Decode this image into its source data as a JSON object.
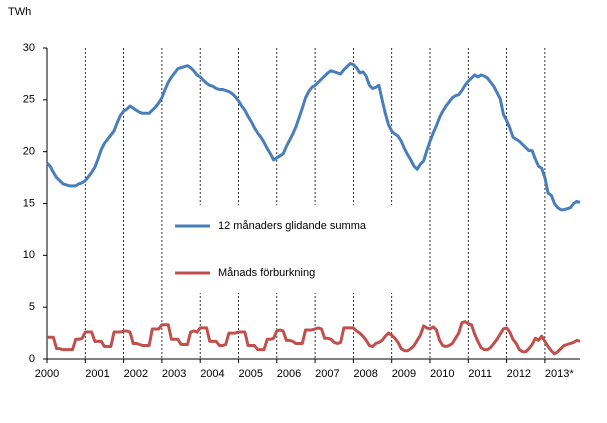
{
  "chart_data": {
    "type": "line",
    "y_label": "TWh",
    "categories": [
      "2000",
      null,
      null,
      null,
      null,
      null,
      null,
      null,
      null,
      null,
      null,
      null,
      "2001",
      null,
      null,
      null,
      null,
      null,
      null,
      null,
      null,
      null,
      null,
      null,
      "2002",
      null,
      null,
      null,
      null,
      null,
      null,
      null,
      null,
      null,
      null,
      null,
      "2003",
      null,
      null,
      null,
      null,
      null,
      null,
      null,
      null,
      null,
      null,
      null,
      "2004",
      null,
      null,
      null,
      null,
      null,
      null,
      null,
      null,
      null,
      null,
      null,
      "2005",
      null,
      null,
      null,
      null,
      null,
      null,
      null,
      null,
      null,
      null,
      null,
      "2006",
      null,
      null,
      null,
      null,
      null,
      null,
      null,
      null,
      null,
      null,
      null,
      "2007",
      null,
      null,
      null,
      null,
      null,
      null,
      null,
      null,
      null,
      null,
      null,
      "2008",
      null,
      null,
      null,
      null,
      null,
      null,
      null,
      null,
      null,
      null,
      null,
      "2009",
      null,
      null,
      null,
      null,
      null,
      null,
      null,
      null,
      null,
      null,
      null,
      "2010",
      null,
      null,
      null,
      null,
      null,
      null,
      null,
      null,
      null,
      null,
      null,
      "2011",
      null,
      null,
      null,
      null,
      null,
      null,
      null,
      null,
      null,
      null,
      null,
      "2012",
      null,
      null,
      null,
      null,
      null,
      null,
      null,
      null,
      null,
      null,
      null,
      "2013*",
      null,
      null,
      null,
      null,
      null,
      null,
      null,
      null,
      null,
      null,
      null
    ],
    "series": [
      {
        "name": "12 månaders glidande summa",
        "color": "#4a7ebb",
        "values": [
          18.9,
          18.6,
          18.0,
          17.5,
          17.2,
          16.9,
          16.8,
          16.7,
          16.7,
          16.7,
          16.9,
          17.0,
          17.2,
          17.6,
          18.0,
          18.5,
          19.3,
          20.2,
          20.8,
          21.2,
          21.6,
          22.0,
          22.8,
          23.5,
          23.9,
          24.1,
          24.4,
          24.2,
          24.0,
          23.8,
          23.7,
          23.7,
          23.7,
          24.0,
          24.3,
          24.7,
          25.2,
          26.0,
          26.7,
          27.2,
          27.6,
          28.0,
          28.1,
          28.2,
          28.3,
          28.1,
          27.8,
          27.4,
          27.2,
          26.9,
          26.6,
          26.4,
          26.3,
          26.1,
          26.0,
          26.0,
          25.9,
          25.8,
          25.6,
          25.3,
          24.9,
          24.4,
          24.0,
          23.4,
          22.9,
          22.3,
          21.8,
          21.4,
          20.9,
          20.3,
          19.8,
          19.2,
          19.4,
          19.6,
          19.8,
          20.5,
          21.1,
          21.7,
          22.4,
          23.3,
          24.2,
          25.2,
          25.8,
          26.2,
          26.4,
          26.7,
          27.0,
          27.3,
          27.6,
          27.8,
          27.7,
          27.6,
          27.5,
          27.9,
          28.2,
          28.5,
          28.4,
          28.1,
          27.6,
          27.7,
          27.3,
          26.4,
          26.1,
          26.2,
          26.4,
          25.0,
          23.7,
          22.6,
          22.0,
          21.7,
          21.5,
          21.0,
          20.3,
          19.7,
          19.2,
          18.6,
          18.3,
          18.8,
          19.1,
          20.1,
          21.0,
          21.8,
          22.5,
          23.3,
          23.9,
          24.4,
          24.8,
          25.2,
          25.4,
          25.5,
          25.9,
          26.4,
          26.8,
          27.1,
          27.4,
          27.2,
          27.4,
          27.3,
          27.1,
          26.7,
          26.3,
          25.7,
          25.1,
          23.6,
          23.0,
          22.3,
          21.4,
          21.2,
          21.0,
          20.7,
          20.4,
          20.1,
          20.1,
          19.3,
          18.6,
          18.4,
          17.5,
          16.0,
          15.8,
          15.0,
          14.6,
          14.4,
          14.4,
          14.5,
          14.6,
          15.0,
          15.2,
          15.1
        ]
      },
      {
        "name": "Månads förburkning",
        "color": "#c0504d",
        "values": [
          2.1,
          2.1,
          2.1,
          1.0,
          1.0,
          0.9,
          0.9,
          0.9,
          0.9,
          1.9,
          1.9,
          2.0,
          2.6,
          2.6,
          2.6,
          1.7,
          1.7,
          1.7,
          1.2,
          1.2,
          1.2,
          2.6,
          2.6,
          2.6,
          2.7,
          2.7,
          2.6,
          1.5,
          1.5,
          1.4,
          1.3,
          1.3,
          1.3,
          2.9,
          2.9,
          2.9,
          3.3,
          3.3,
          3.3,
          1.9,
          1.9,
          1.9,
          1.4,
          1.4,
          1.4,
          2.6,
          2.7,
          2.6,
          3.0,
          3.0,
          3.0,
          1.7,
          1.7,
          1.7,
          1.3,
          1.3,
          1.4,
          2.5,
          2.5,
          2.5,
          2.6,
          2.6,
          2.6,
          1.3,
          1.3,
          1.3,
          0.9,
          0.9,
          0.9,
          1.9,
          1.9,
          2.0,
          2.7,
          2.8,
          2.7,
          1.8,
          1.8,
          1.7,
          1.5,
          1.5,
          1.5,
          2.8,
          2.8,
          2.8,
          2.9,
          3.0,
          2.9,
          2.0,
          2.0,
          1.9,
          1.6,
          1.5,
          1.6,
          3.0,
          3.0,
          3.0,
          3.0,
          2.7,
          2.5,
          2.2,
          1.8,
          1.3,
          1.2,
          1.5,
          1.6,
          1.8,
          2.2,
          2.5,
          2.3,
          2.0,
          1.6,
          1.0,
          0.8,
          0.8,
          1.0,
          1.3,
          1.8,
          2.3,
          3.2,
          3.0,
          2.9,
          3.1,
          2.8,
          1.8,
          1.3,
          1.2,
          1.3,
          1.5,
          2.0,
          2.5,
          3.5,
          3.6,
          3.4,
          3.3,
          2.4,
          1.7,
          1.1,
          0.9,
          0.9,
          1.1,
          1.5,
          1.9,
          2.4,
          2.9,
          3.0,
          2.6,
          1.9,
          1.5,
          0.9,
          0.7,
          0.7,
          1.0,
          1.4,
          2.0,
          1.8,
          2.2,
          1.7,
          1.2,
          0.8,
          0.5,
          0.7,
          1.0,
          1.3,
          1.4,
          1.5,
          1.6,
          1.8,
          1.7
        ]
      }
    ],
    "ylim": [
      0,
      30
    ],
    "yticks": [
      0,
      5,
      10,
      15,
      20,
      25,
      30
    ],
    "x_gridlines": true
  }
}
